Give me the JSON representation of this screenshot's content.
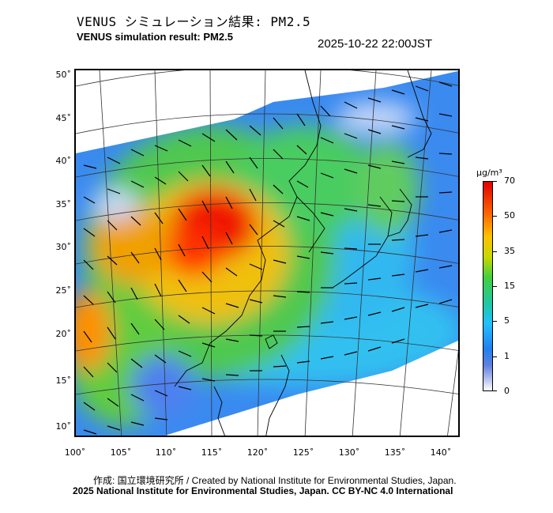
{
  "header": {
    "title_jp": "VENUS シミュレーション結果: PM2.5",
    "title_en": "VENUS simulation result: PM2.5",
    "timestamp": "2025-10-22 22:00JST"
  },
  "axes": {
    "lat_labels": [
      "50˚",
      "45˚",
      "40˚",
      "35˚",
      "30˚",
      "25˚",
      "20˚",
      "15˚",
      "10˚"
    ],
    "lon_labels": [
      "100˚",
      "105˚",
      "110˚",
      "115˚",
      "120˚",
      "125˚",
      "130˚",
      "135˚",
      "140˚"
    ]
  },
  "colorbar": {
    "unit": "μg/m³",
    "ticks": [
      "70",
      "50",
      "35",
      "15",
      "5",
      "1",
      "0"
    ],
    "colors": [
      "#e00000",
      "#ff6a00",
      "#ffc000",
      "#c8d800",
      "#40d040",
      "#20c8a0",
      "#20c0ff",
      "#2080f0",
      "#6080e0",
      "#c8d0f0",
      "#ffffff"
    ]
  },
  "credits": {
    "line1": "作成: 国立環境研究所 / Created by National Institute for Environmental Studies, Japan.",
    "line2": "2025 National Institute for Environmental Studies, Japan. CC BY-NC 4.0 International"
  }
}
